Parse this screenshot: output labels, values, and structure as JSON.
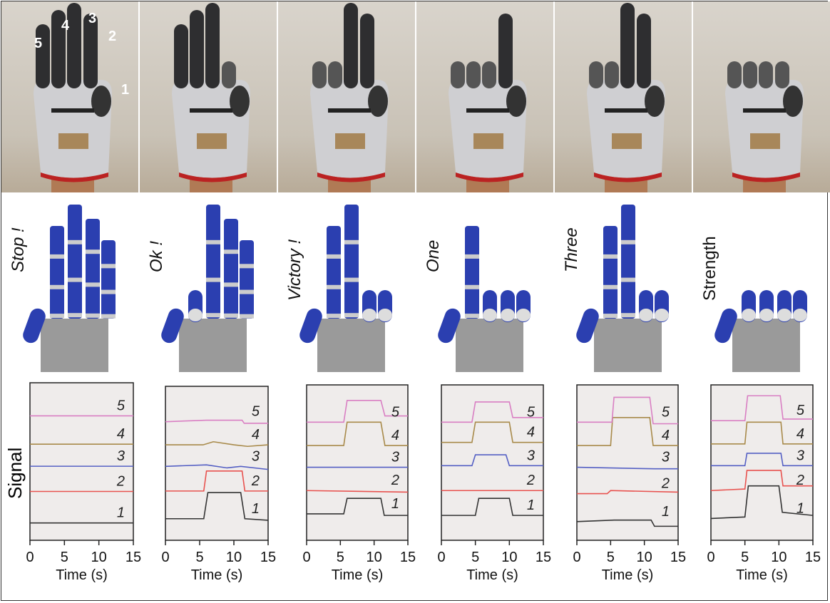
{
  "finger_numbers": [
    "1",
    "2",
    "3",
    "4",
    "5"
  ],
  "gestures": [
    {
      "label": "Stop !",
      "bent": [
        true,
        false,
        false,
        false,
        false
      ]
    },
    {
      "label": "Ok !",
      "bent": [
        true,
        true,
        false,
        false,
        false
      ]
    },
    {
      "label": "Victory !",
      "bent": [
        true,
        false,
        false,
        true,
        true
      ]
    },
    {
      "label": "One",
      "bent": [
        true,
        false,
        true,
        true,
        true
      ]
    },
    {
      "label": "Three",
      "bent": [
        true,
        false,
        false,
        true,
        true
      ]
    },
    {
      "label": "Strength",
      "bent": [
        true,
        true,
        true,
        true,
        true
      ]
    }
  ],
  "colors": {
    "finger": "#2b3fb0",
    "palm": "#9a9a9a",
    "plot_bg": "#efeceb",
    "series": {
      "1": "#333333",
      "2": "#e8524f",
      "3": "#5560c4",
      "4": "#a88a4a",
      "5": "#d97fc3"
    }
  },
  "chart_data": [
    {
      "type": "line",
      "ylabel": "Signal",
      "xlabel": "Time (s)",
      "xlim": [
        0,
        15
      ],
      "xticks": [
        0,
        5,
        10,
        15
      ],
      "grid": false,
      "series": [
        {
          "name": "1",
          "points": [
            [
              0,
              1.1
            ],
            [
              15,
              1.1
            ]
          ]
        },
        {
          "name": "2",
          "points": [
            [
              0,
              3.1
            ],
            [
              15,
              3.1
            ]
          ]
        },
        {
          "name": "3",
          "points": [
            [
              0,
              4.7
            ],
            [
              15,
              4.7
            ]
          ]
        },
        {
          "name": "4",
          "points": [
            [
              0,
              6.1
            ],
            [
              15,
              6.1
            ]
          ]
        },
        {
          "name": "5",
          "points": [
            [
              0,
              7.9
            ],
            [
              15,
              7.9
            ]
          ]
        }
      ]
    },
    {
      "type": "line",
      "xlabel": "Time (s)",
      "xlim": [
        0,
        15
      ],
      "xticks": [
        0,
        5,
        10,
        15
      ],
      "grid": false,
      "series": [
        {
          "name": "1",
          "points": [
            [
              0,
              1.4
            ],
            [
              5.6,
              1.4
            ],
            [
              6.2,
              3.1
            ],
            [
              11,
              3.1
            ],
            [
              11.6,
              1.4
            ],
            [
              15,
              1.3
            ]
          ]
        },
        {
          "name": "2",
          "points": [
            [
              0,
              3.2
            ],
            [
              5.6,
              3.2
            ],
            [
              6,
              4.5
            ],
            [
              11.2,
              4.5
            ],
            [
              11.6,
              3.2
            ],
            [
              15,
              3.2
            ]
          ]
        },
        {
          "name": "3",
          "points": [
            [
              0,
              4.8
            ],
            [
              6,
              4.9
            ],
            [
              9,
              4.7
            ],
            [
              11,
              4.8
            ],
            [
              15,
              4.6
            ]
          ]
        },
        {
          "name": "4",
          "points": [
            [
              0,
              6.2
            ],
            [
              5.5,
              6.2
            ],
            [
              7,
              6.4
            ],
            [
              10,
              6.2
            ],
            [
              12,
              6.1
            ],
            [
              15,
              6.2
            ]
          ]
        },
        {
          "name": "5",
          "points": [
            [
              0,
              7.7
            ],
            [
              6,
              7.8
            ],
            [
              11.2,
              7.8
            ],
            [
              11.5,
              7.6
            ],
            [
              15,
              7.6
            ]
          ]
        }
      ]
    },
    {
      "type": "line",
      "xlabel": "Time (s)",
      "xlim": [
        0,
        15
      ],
      "xticks": [
        0,
        5,
        10,
        15
      ],
      "grid": false,
      "series": [
        {
          "name": "1",
          "points": [
            [
              0,
              1.7
            ],
            [
              5.5,
              1.7
            ],
            [
              6,
              2.7
            ],
            [
              11,
              2.7
            ],
            [
              11.5,
              1.6
            ],
            [
              15,
              1.6
            ]
          ]
        },
        {
          "name": "2",
          "points": [
            [
              0,
              3.2
            ],
            [
              15,
              3.1
            ]
          ]
        },
        {
          "name": "3",
          "points": [
            [
              0,
              4.7
            ],
            [
              15,
              4.7
            ]
          ]
        },
        {
          "name": "4",
          "points": [
            [
              0,
              6.1
            ],
            [
              5.5,
              6.1
            ],
            [
              6,
              7.6
            ],
            [
              11,
              7.6
            ],
            [
              11.6,
              6.1
            ],
            [
              15,
              6.1
            ]
          ]
        },
        {
          "name": "5",
          "points": [
            [
              0,
              7.6
            ],
            [
              5.5,
              7.6
            ],
            [
              6,
              9.0
            ],
            [
              11,
              9.0
            ],
            [
              11.6,
              8.0
            ],
            [
              15,
              8.0
            ]
          ]
        }
      ]
    },
    {
      "type": "line",
      "xlabel": "Time (s)",
      "xlim": [
        0,
        15
      ],
      "xticks": [
        0,
        5,
        10,
        15
      ],
      "grid": false,
      "series": [
        {
          "name": "1",
          "points": [
            [
              0,
              1.6
            ],
            [
              5,
              1.6
            ],
            [
              5.5,
              2.7
            ],
            [
              10,
              2.7
            ],
            [
              10.5,
              1.6
            ],
            [
              15,
              1.6
            ]
          ]
        },
        {
          "name": "2",
          "points": [
            [
              0,
              3.2
            ],
            [
              15,
              3.2
            ]
          ]
        },
        {
          "name": "3",
          "points": [
            [
              0,
              4.8
            ],
            [
              4.5,
              4.8
            ],
            [
              5,
              5.5
            ],
            [
              9.5,
              5.5
            ],
            [
              10,
              4.8
            ],
            [
              15,
              4.8
            ]
          ]
        },
        {
          "name": "4",
          "points": [
            [
              0,
              6.3
            ],
            [
              4.5,
              6.3
            ],
            [
              5,
              7.6
            ],
            [
              10,
              7.6
            ],
            [
              10.5,
              6.3
            ],
            [
              15,
              6.3
            ]
          ]
        },
        {
          "name": "5",
          "points": [
            [
              0,
              7.6
            ],
            [
              4.5,
              7.6
            ],
            [
              5,
              8.9
            ],
            [
              10,
              8.9
            ],
            [
              10.5,
              7.9
            ],
            [
              15,
              7.9
            ]
          ]
        }
      ]
    },
    {
      "type": "line",
      "xlabel": "Time (s)",
      "xlim": [
        0,
        15
      ],
      "xticks": [
        0,
        5,
        10,
        15
      ],
      "grid": false,
      "series": [
        {
          "name": "1",
          "points": [
            [
              0,
              1.2
            ],
            [
              5.5,
              1.3
            ],
            [
              11,
              1.3
            ],
            [
              11.5,
              0.9
            ],
            [
              15,
              0.9
            ]
          ]
        },
        {
          "name": "2",
          "points": [
            [
              0,
              3.0
            ],
            [
              4.5,
              3.0
            ],
            [
              5,
              3.2
            ],
            [
              15,
              3.1
            ]
          ]
        },
        {
          "name": "3",
          "points": [
            [
              0,
              4.7
            ],
            [
              11.5,
              4.6
            ],
            [
              15,
              4.6
            ]
          ]
        },
        {
          "name": "4",
          "points": [
            [
              0,
              6.1
            ],
            [
              5,
              6.1
            ],
            [
              5.3,
              7.9
            ],
            [
              10.8,
              7.9
            ],
            [
              11.3,
              6.1
            ],
            [
              15,
              6.1
            ]
          ]
        },
        {
          "name": "5",
          "points": [
            [
              0,
              7.6
            ],
            [
              5.2,
              7.6
            ],
            [
              5.5,
              9.2
            ],
            [
              10.8,
              9.2
            ],
            [
              11.3,
              7.5
            ],
            [
              15,
              7.5
            ]
          ]
        }
      ]
    },
    {
      "type": "line",
      "xlabel": "Time (s)",
      "xlim": [
        0,
        15
      ],
      "xticks": [
        0,
        5,
        10,
        15
      ],
      "grid": false,
      "series": [
        {
          "name": "1",
          "points": [
            [
              0,
              1.4
            ],
            [
              5,
              1.5
            ],
            [
              5.5,
              3.5
            ],
            [
              10,
              3.5
            ],
            [
              10.5,
              1.8
            ],
            [
              15,
              1.6
            ]
          ]
        },
        {
          "name": "2",
          "points": [
            [
              0,
              3.2
            ],
            [
              5,
              3.3
            ],
            [
              5.3,
              4.5
            ],
            [
              10.3,
              4.5
            ],
            [
              10.6,
              3.5
            ],
            [
              15,
              3.5
            ]
          ]
        },
        {
          "name": "3",
          "points": [
            [
              0,
              4.8
            ],
            [
              5,
              4.8
            ],
            [
              5.3,
              5.6
            ],
            [
              10.3,
              5.6
            ],
            [
              10.6,
              4.8
            ],
            [
              15,
              4.8
            ]
          ]
        },
        {
          "name": "4",
          "points": [
            [
              0,
              6.2
            ],
            [
              5,
              6.2
            ],
            [
              5.3,
              7.6
            ],
            [
              10.3,
              7.6
            ],
            [
              10.6,
              6.2
            ],
            [
              15,
              6.2
            ]
          ]
        },
        {
          "name": "5",
          "points": [
            [
              0,
              7.7
            ],
            [
              5,
              7.7
            ],
            [
              5.4,
              9.3
            ],
            [
              10.2,
              9.3
            ],
            [
              10.6,
              7.8
            ],
            [
              15,
              7.8
            ]
          ]
        }
      ]
    }
  ]
}
